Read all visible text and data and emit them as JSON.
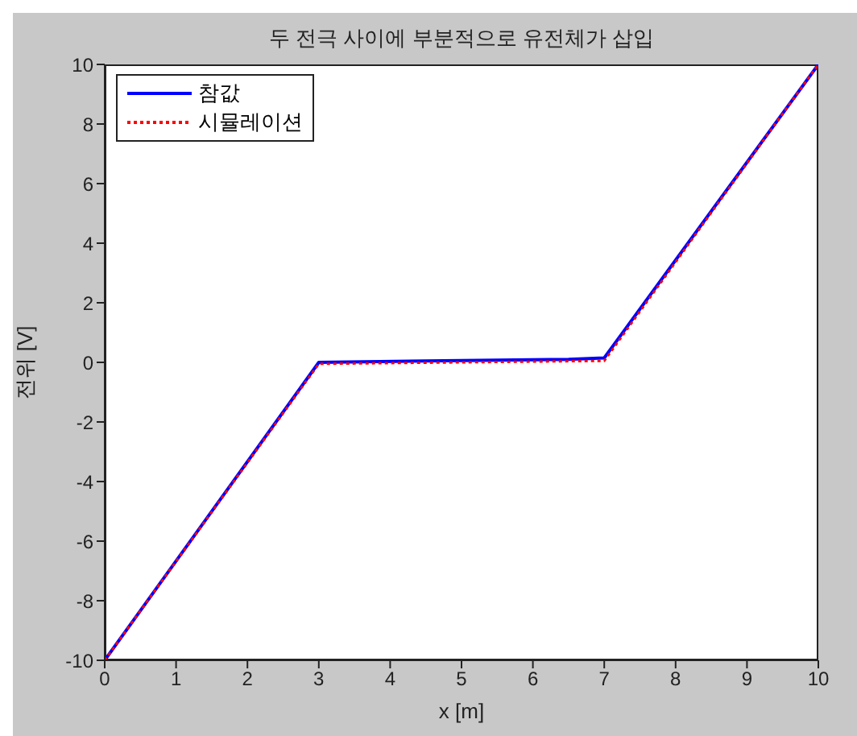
{
  "chart_data": {
    "type": "line",
    "title": "두 전극 사이에 부분적으로 유전체가 삽입",
    "xlabel": "x [m]",
    "ylabel": "전위 [V]",
    "xlim": [
      0,
      10
    ],
    "xticks": [
      0,
      1,
      2,
      3,
      4,
      5,
      6,
      7,
      8,
      9,
      10
    ],
    "ylim": [
      -10,
      10
    ],
    "yticks": [
      -10,
      -8,
      -6,
      -4,
      -2,
      0,
      2,
      4,
      6,
      8,
      10
    ],
    "grid": false,
    "legend": "top left",
    "series": [
      {
        "name": "참값",
        "color": "#0000ff",
        "line_style": "solid",
        "x": [
          0,
          3,
          4.5,
          6.5,
          7,
          10
        ],
        "values": [
          -10,
          0,
          0.05,
          0.1,
          0.15,
          10
        ]
      },
      {
        "name": "시뮬레이션",
        "color": "#ff0000",
        "line_style": "dotted",
        "x": [
          0,
          3,
          5,
          7,
          10
        ],
        "values": [
          -10,
          -0.05,
          0,
          0.05,
          10
        ]
      }
    ]
  }
}
